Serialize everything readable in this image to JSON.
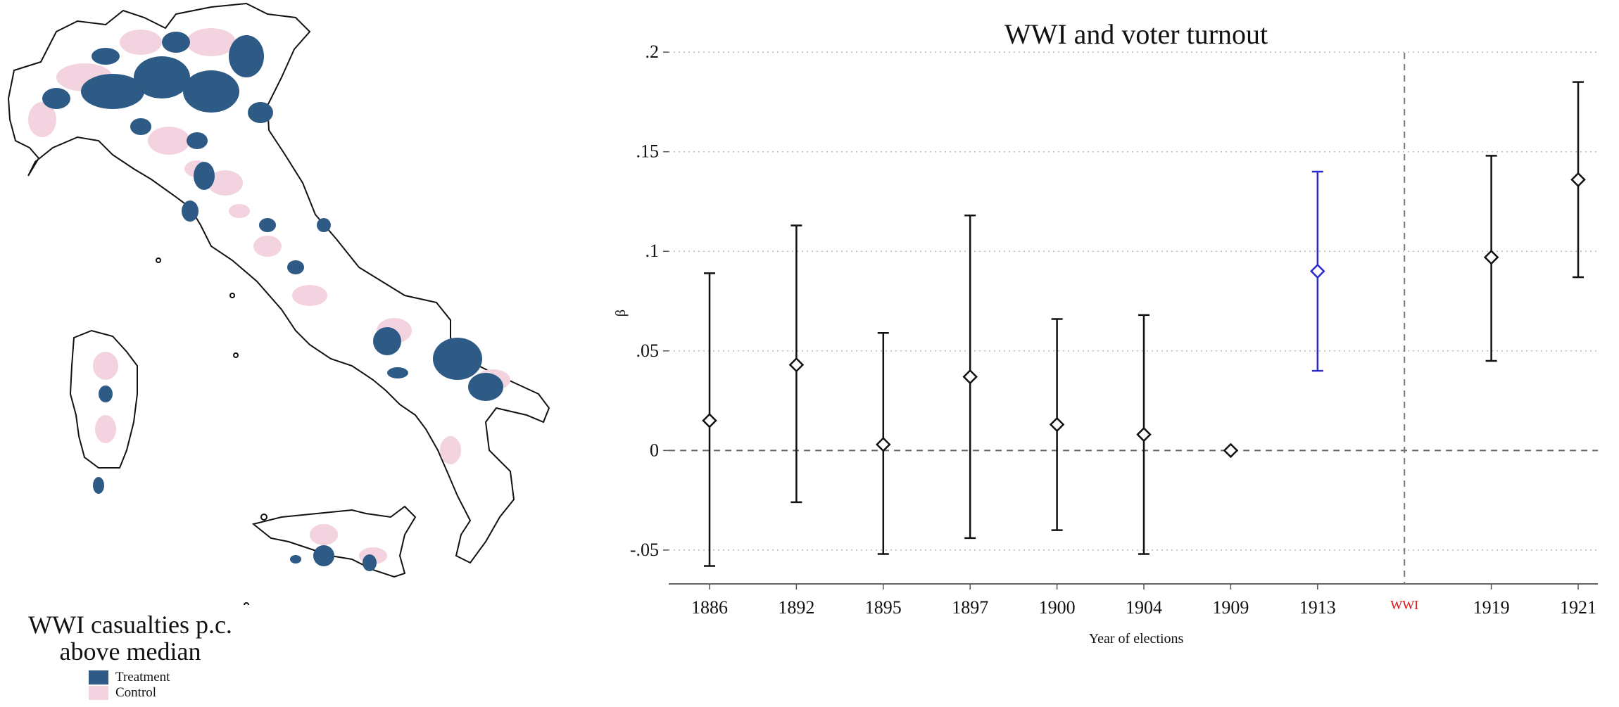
{
  "map": {
    "legend_title_line1": "WWI casualties p.c.",
    "legend_title_line2": "above median",
    "legend_items": [
      {
        "label": "Treatment",
        "color": "#2e5b85"
      },
      {
        "label": "Control",
        "color": "#f3d3e0"
      }
    ]
  },
  "chart_data": {
    "type": "scatter",
    "title": "WWI and voter turnout",
    "xlabel": "Year of elections",
    "ylabel": "β",
    "categories": [
      "1886",
      "1892",
      "1895",
      "1897",
      "1900",
      "1904",
      "1909",
      "1913",
      "WWI",
      "1919",
      "1921"
    ],
    "yticks": [
      -0.05,
      0,
      0.05,
      0.1,
      0.15,
      0.2
    ],
    "ytick_labels": [
      "-.05",
      "0",
      ".05",
      ".1",
      ".15",
      ".2"
    ],
    "ylim": [
      -0.067,
      0.205
    ],
    "grid": true,
    "points": [
      {
        "x": "1886",
        "y": 0.015,
        "lo": -0.058,
        "hi": 0.089,
        "color": "#111111"
      },
      {
        "x": "1892",
        "y": 0.043,
        "lo": -0.026,
        "hi": 0.113,
        "color": "#111111"
      },
      {
        "x": "1895",
        "y": 0.003,
        "lo": -0.052,
        "hi": 0.059,
        "color": "#111111"
      },
      {
        "x": "1897",
        "y": 0.037,
        "lo": -0.044,
        "hi": 0.118,
        "color": "#111111"
      },
      {
        "x": "1900",
        "y": 0.013,
        "lo": -0.04,
        "hi": 0.066,
        "color": "#111111"
      },
      {
        "x": "1904",
        "y": 0.008,
        "lo": -0.052,
        "hi": 0.068,
        "color": "#111111"
      },
      {
        "x": "1909",
        "y": 0.0,
        "color": "#111111"
      },
      {
        "x": "1913",
        "y": 0.09,
        "lo": 0.04,
        "hi": 0.14,
        "color": "#2a2ad0"
      },
      {
        "x": "1919",
        "y": 0.097,
        "lo": 0.045,
        "hi": 0.148,
        "color": "#111111"
      },
      {
        "x": "1921",
        "y": 0.136,
        "lo": 0.087,
        "hi": 0.185,
        "color": "#111111"
      }
    ],
    "reference_line_y": 0,
    "event_line": {
      "x": "WWI",
      "label": "WWI",
      "color": "#dd1111"
    }
  }
}
